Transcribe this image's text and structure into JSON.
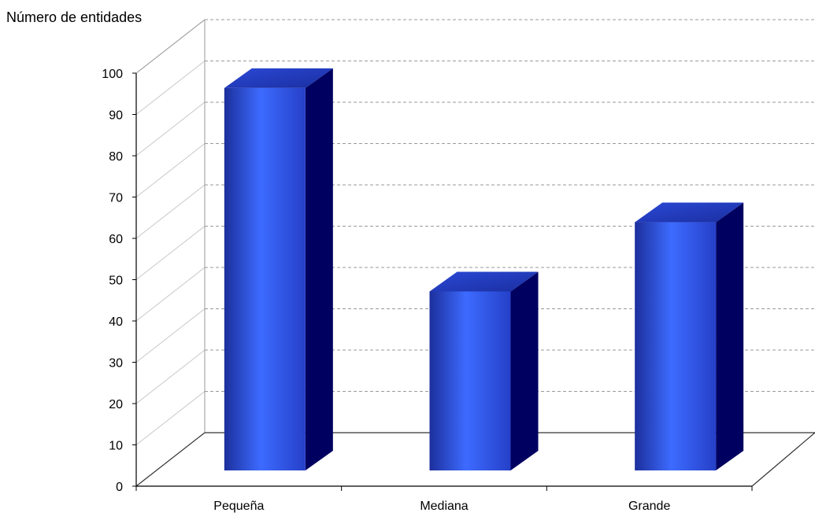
{
  "chart_data": {
    "type": "bar",
    "ylabel": "Número de entidades",
    "categories": [
      "Pequeña",
      "Mediana",
      "Grande"
    ],
    "values": [
      94,
      44,
      61
    ],
    "ylim": [
      0,
      100
    ],
    "yticks": [
      0,
      10,
      20,
      30,
      40,
      50,
      60,
      70,
      80,
      90,
      100
    ],
    "grid": true,
    "three_d": true,
    "colors": {
      "bar_front": "#3355ee",
      "bar_front_highlight": "#3d6bff",
      "bar_side": "#000060",
      "bar_top": "#2b49d6",
      "grid": "#9a9a9a",
      "axis": "#000000"
    }
  }
}
